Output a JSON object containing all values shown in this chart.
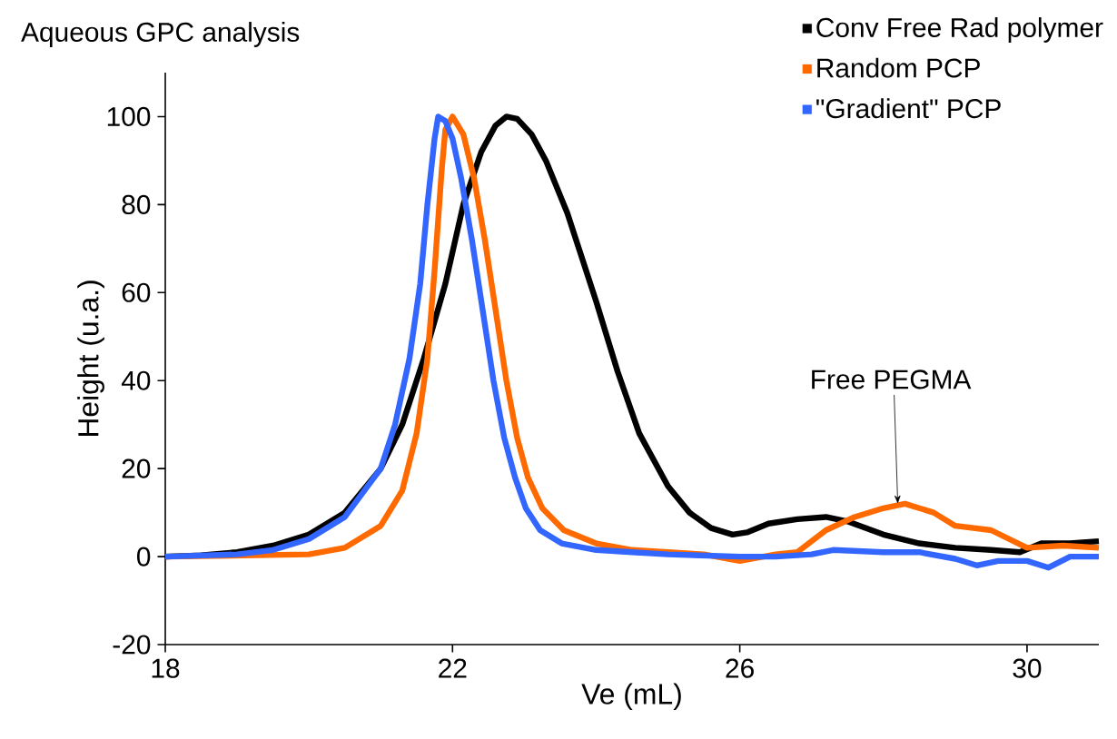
{
  "chart_data": {
    "type": "line",
    "title": "Aqueous GPC analysis",
    "xlabel": "Ve (mL)",
    "ylabel": "Height (u.a.)",
    "xlim": [
      18,
      31
    ],
    "ylim": [
      -20,
      110
    ],
    "xticks": [
      18,
      22,
      26,
      30
    ],
    "yticks": [
      -20,
      0,
      20,
      40,
      60,
      80,
      100
    ],
    "legend": "top right",
    "grid": false,
    "annotations": [
      {
        "text": "Free PEGMA",
        "x": 28.2,
        "y": 12
      }
    ],
    "series": [
      {
        "name": "Conv Free Rad polymer",
        "color": "#000000",
        "x": [
          18,
          18.5,
          19,
          19.5,
          20,
          20.5,
          21,
          21.3,
          21.6,
          21.9,
          22.15,
          22.4,
          22.6,
          22.75,
          22.9,
          23.1,
          23.3,
          23.6,
          24,
          24.3,
          24.6,
          25,
          25.3,
          25.6,
          25.9,
          26.1,
          26.4,
          26.8,
          27.2,
          27.5,
          28,
          28.5,
          29,
          29.5,
          29.9,
          30.2,
          30.6,
          31
        ],
        "values": [
          0,
          0.3,
          1,
          2.5,
          5,
          10,
          20,
          30,
          45,
          62,
          80,
          92,
          98,
          100,
          99.5,
          96,
          90,
          78,
          58,
          42,
          28,
          16,
          10,
          6.5,
          5,
          5.5,
          7.5,
          8.5,
          9,
          8,
          5,
          3,
          2,
          1.5,
          1,
          3,
          3,
          3.5
        ]
      },
      {
        "name": "Random PCP",
        "color": "#ff6a00",
        "x": [
          18,
          20,
          20.5,
          21,
          21.3,
          21.5,
          21.65,
          21.75,
          21.85,
          21.9,
          22.0,
          22.15,
          22.3,
          22.45,
          22.6,
          22.75,
          22.9,
          23.05,
          23.25,
          23.55,
          24,
          24.5,
          25,
          25.5,
          26,
          26.5,
          26.8,
          27.2,
          27.6,
          28,
          28.3,
          28.7,
          29,
          29.5,
          30,
          30.5,
          31
        ],
        "values": [
          0,
          0.5,
          2,
          7,
          15,
          28,
          45,
          65,
          88,
          97,
          100,
          96,
          86,
          72,
          56,
          40,
          27,
          18,
          11,
          6,
          3,
          1.5,
          1,
          0.5,
          -1,
          0.5,
          1,
          6,
          9,
          11,
          12,
          10,
          7,
          6,
          2,
          2.5,
          2
        ]
      },
      {
        "name": "\"Gradient\" PCP",
        "color": "#3366ff",
        "x": [
          18,
          19,
          19.5,
          20,
          20.5,
          21,
          21.2,
          21.4,
          21.55,
          21.65,
          21.75,
          21.8,
          21.9,
          22.0,
          22.12,
          22.27,
          22.42,
          22.57,
          22.72,
          22.87,
          23.02,
          23.22,
          23.52,
          24,
          24.5,
          25,
          26,
          26.5,
          27,
          27.3,
          28,
          28.5,
          29,
          29.3,
          29.6,
          30,
          30.3,
          30.6,
          31
        ],
        "values": [
          0,
          0.5,
          1.5,
          4,
          9,
          20,
          30,
          45,
          62,
          80,
          95,
          100,
          99,
          95,
          86,
          72,
          56,
          40,
          27,
          18,
          11,
          6,
          3,
          1.5,
          1,
          0.5,
          0,
          0,
          0.5,
          1.5,
          1,
          1,
          -0.5,
          -2,
          -1,
          -1,
          -2.5,
          0,
          0
        ]
      }
    ]
  }
}
